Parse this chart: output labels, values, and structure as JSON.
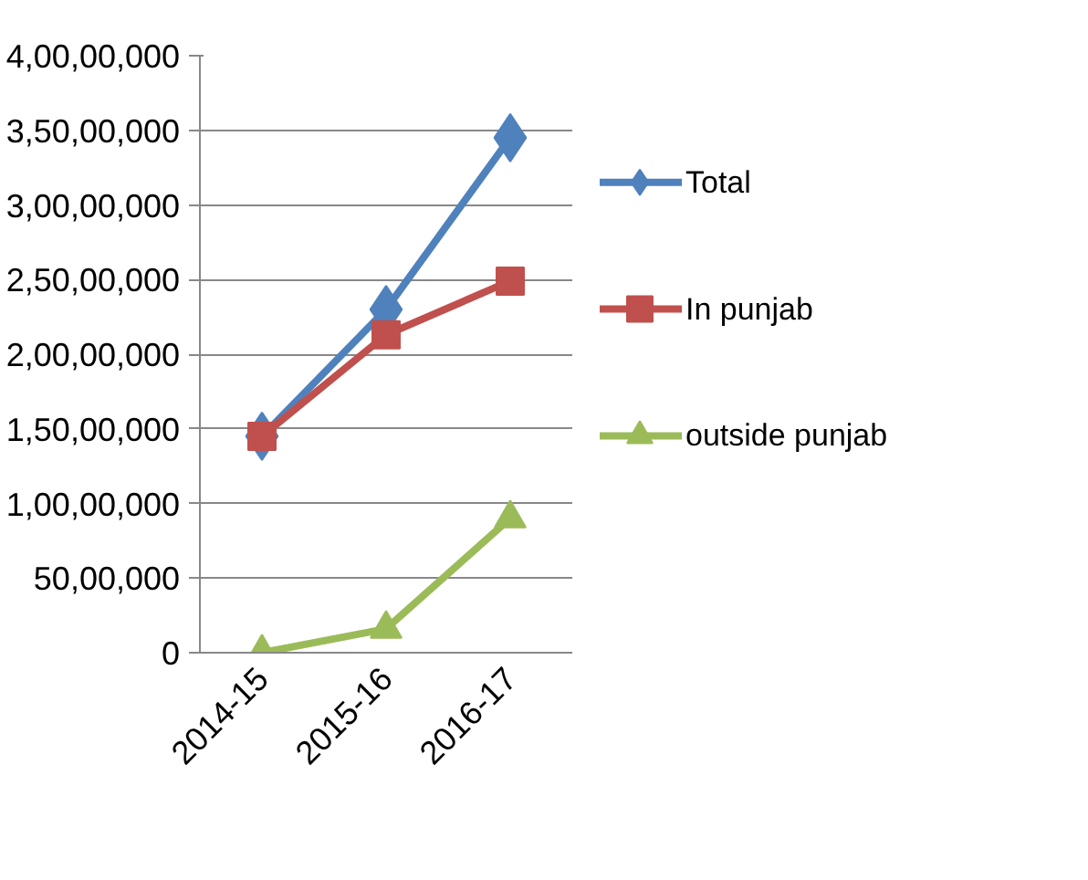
{
  "chart_data": {
    "type": "line",
    "categories": [
      "2014-15",
      "2015-16",
      "2016-17"
    ],
    "series": [
      {
        "name": "Total",
        "color": "#4f81bd",
        "marker": "diamond",
        "values": [
          14500000,
          23000000,
          34500000
        ]
      },
      {
        "name": "In punjab",
        "color": "#c0504d",
        "marker": "square",
        "values": [
          14500000,
          21300000,
          24900000
        ]
      },
      {
        "name": "outside punjab",
        "color": "#9bbb59",
        "marker": "triangle",
        "values": [
          0,
          1600000,
          9000000
        ]
      }
    ],
    "ylim": [
      0,
      40000000
    ],
    "yticks": [
      {
        "value": 0,
        "label": "0"
      },
      {
        "value": 5000000,
        "label": "50,00,000"
      },
      {
        "value": 10000000,
        "label": "1,00,00,000"
      },
      {
        "value": 15000000,
        "label": "1,50,00,000"
      },
      {
        "value": 20000000,
        "label": "2,00,00,000"
      },
      {
        "value": 25000000,
        "label": "2,50,00,000"
      },
      {
        "value": 30000000,
        "label": "3,00,00,000"
      },
      {
        "value": 35000000,
        "label": "3,50,00,000"
      },
      {
        "value": 40000000,
        "label": "4,00,00,000"
      }
    ],
    "grid": "y",
    "legend": "right",
    "line_style": "solid"
  }
}
